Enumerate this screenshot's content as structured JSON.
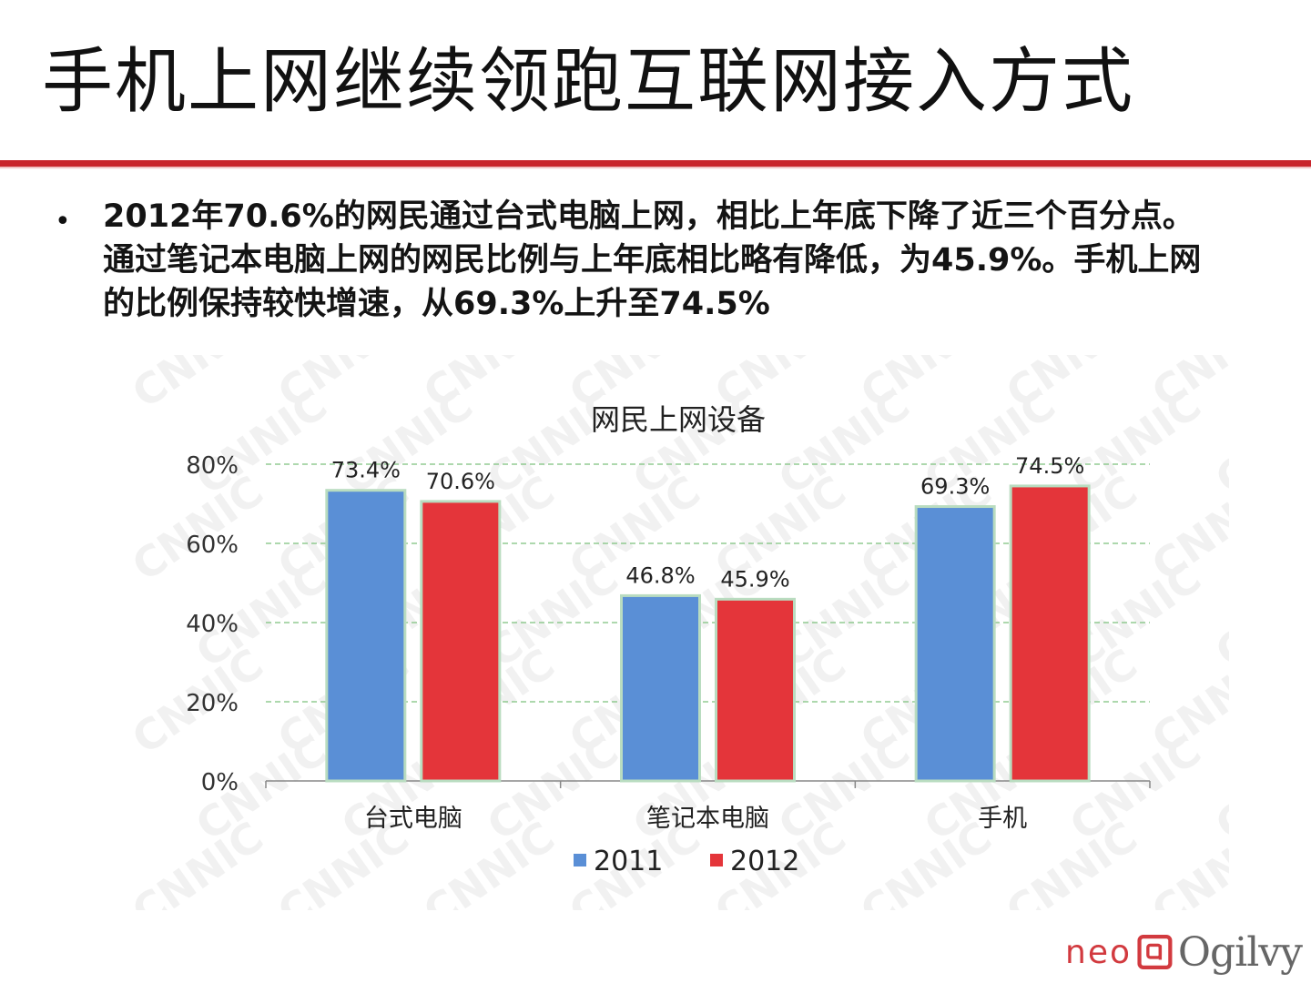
{
  "slide": {
    "title": "手机上网继续领跑互联网接入方式",
    "bullet_symbol": "•",
    "bullet_text": "2012年70.6%的网民通过台式电脑上网，相比上年底下降了近三个百分点。通过笔记本电脑上网的网民比例与上年底相比略有降低，为45.9%。手机上网的比例保持较快增速，从69.3%上升至74.5%"
  },
  "logo": {
    "neo": "neo",
    "ogilvy": "Ogilvy"
  },
  "watermark": "CNNIC",
  "colors": {
    "accent_red": "#c8252c",
    "series_2011": "#5a8fd6",
    "series_2012": "#e4353a",
    "bar_outline": "#b9dcc0",
    "gridline": "#7cc17c"
  },
  "chart_data": {
    "type": "bar",
    "title": "网民上网设备",
    "categories": [
      "台式电脑",
      "笔记本电脑",
      "手机"
    ],
    "series": [
      {
        "name": "2011",
        "values": [
          73.4,
          46.8,
          69.3
        ],
        "labels": [
          "73.4%",
          "46.8%",
          "69.3%"
        ]
      },
      {
        "name": "2012",
        "values": [
          70.6,
          45.9,
          74.5
        ],
        "labels": [
          "70.6%",
          "45.9%",
          "74.5%"
        ]
      }
    ],
    "ylim": [
      0,
      80
    ],
    "yticks": [
      "0%",
      "20%",
      "40%",
      "60%",
      "80%"
    ],
    "ytick_values": [
      0,
      20,
      40,
      60,
      80
    ],
    "grid": true,
    "legend_position": "bottom"
  }
}
